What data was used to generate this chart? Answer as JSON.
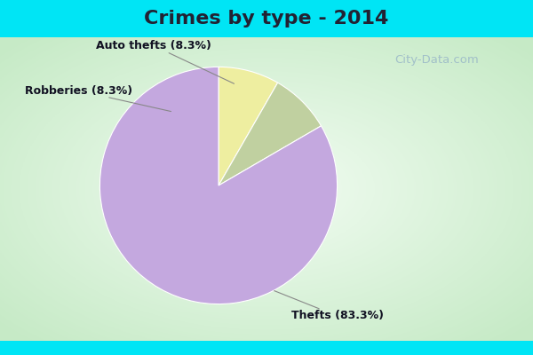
{
  "title": "Crimes by type - 2014",
  "slices": [
    {
      "label": "Thefts (83.3%)",
      "value": 83.3,
      "color": "#C4A8DF"
    },
    {
      "label": "Auto thefts (8.3%)",
      "value": 8.3,
      "color": "#EEEEA0"
    },
    {
      "label": "Robberies (8.3%)",
      "value": 8.3,
      "color": "#C0D0A0"
    }
  ],
  "background_cyan": "#00E5F5",
  "background_green_light": "#E8F5E8",
  "background_green_dark": "#C8E8C0",
  "title_fontsize": 16,
  "label_fontsize": 9,
  "watermark": "City-Data.com",
  "title_color": "#222233",
  "label_color": "#111122",
  "cyan_bar_height": 0.105
}
